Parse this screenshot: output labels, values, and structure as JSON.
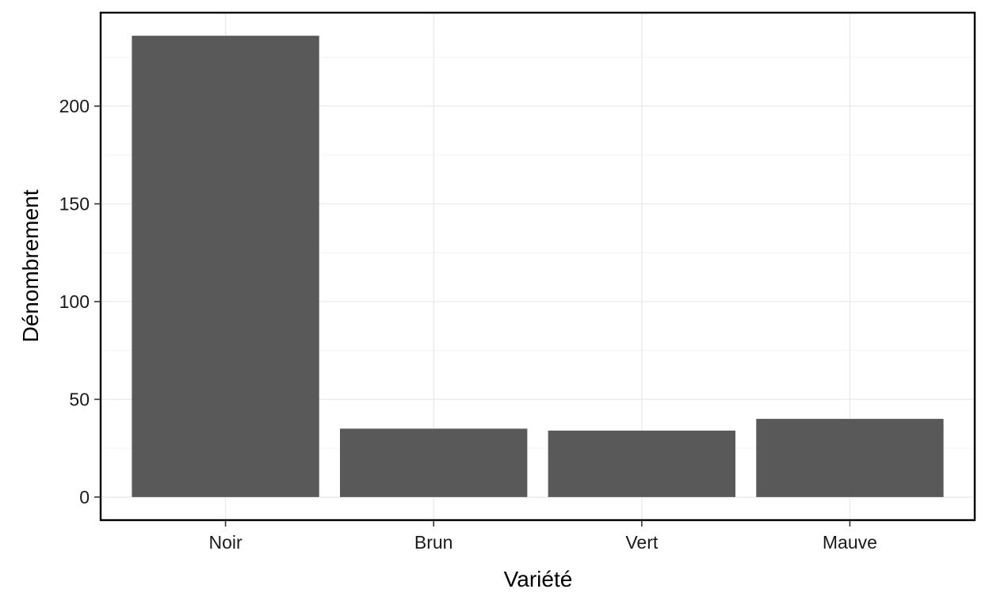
{
  "chart_data": {
    "type": "bar",
    "title": "",
    "xlabel": "Variété",
    "ylabel": "Dénombrement",
    "categories": [
      "Noir",
      "Brun",
      "Vert",
      "Mauve"
    ],
    "values": [
      236,
      35,
      34,
      40
    ],
    "ylim": [
      -11.8,
      247.8
    ],
    "yticks": [
      0,
      50,
      100,
      150,
      200
    ],
    "ytick_labels": [
      "0",
      "50",
      "100",
      "150",
      "200"
    ],
    "grid": true,
    "legend": "none",
    "colors": {
      "bar": "#595959",
      "panel_border": "#000000",
      "grid_major": "#ebebeb",
      "grid_minor": "#f5f5f5"
    }
  }
}
